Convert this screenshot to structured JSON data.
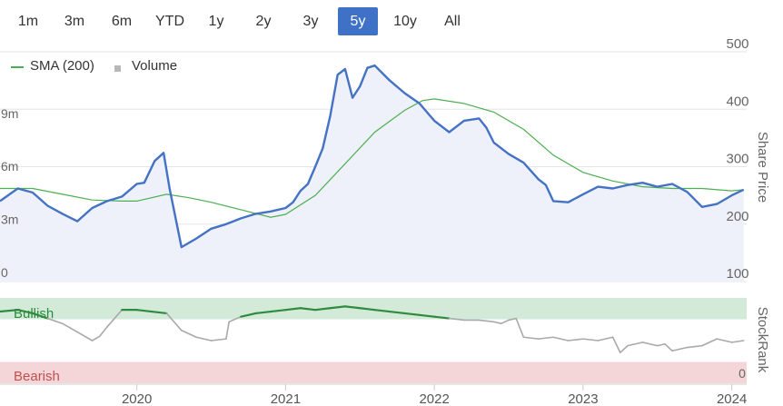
{
  "range_buttons": [
    {
      "label": "1m"
    },
    {
      "label": "3m"
    },
    {
      "label": "6m"
    },
    {
      "label": "YTD"
    },
    {
      "label": "1y"
    },
    {
      "label": "2y"
    },
    {
      "label": "3y"
    },
    {
      "label": "5y",
      "active": true
    },
    {
      "label": "10y"
    },
    {
      "label": "All"
    }
  ],
  "legend": {
    "sma_label": "SMA (200)",
    "volume_label": "Volume"
  },
  "colors": {
    "price": "#4472c4",
    "price_fill": "#eef1f9",
    "sma": "#4caf50",
    "volume": "#cfcfcf",
    "stockrank_bull": "#2e8b3e",
    "stockrank_other": "#a9a9a9",
    "bull_band": "#d3ead8",
    "bear_band": "#f4d6d8",
    "bear_text": "#c0504d",
    "bull_text": "#2e8b3e",
    "active_btn": "#3f72c6"
  },
  "chart_data": [
    {
      "type": "line",
      "title": "",
      "ylabel": "Share Price",
      "y_ticks": [
        "500",
        "400",
        "300",
        "200",
        "100"
      ],
      "ylim": [
        100,
        500
      ],
      "x_ticks": [
        "2020",
        "2021",
        "2022",
        "2023",
        "2024"
      ],
      "xlim": [
        2019.08,
        2024.1
      ],
      "volume_ticks": [
        "9m",
        "6m",
        "3m",
        "0"
      ],
      "volume_lim": [
        0,
        13
      ],
      "series": [
        {
          "name": "Share Price",
          "x": [
            2019.08,
            2019.2,
            2019.3,
            2019.4,
            2019.5,
            2019.6,
            2019.7,
            2019.8,
            2019.9,
            2020.0,
            2020.05,
            2020.12,
            2020.18,
            2020.22,
            2020.3,
            2020.4,
            2020.5,
            2020.6,
            2020.7,
            2020.8,
            2020.9,
            2021.0,
            2021.05,
            2021.1,
            2021.15,
            2021.2,
            2021.25,
            2021.3,
            2021.35,
            2021.4,
            2021.45,
            2021.5,
            2021.55,
            2021.6,
            2021.7,
            2021.8,
            2021.9,
            2022.0,
            2022.1,
            2022.2,
            2022.3,
            2022.35,
            2022.4,
            2022.5,
            2022.6,
            2022.7,
            2022.75,
            2022.8,
            2022.9,
            2023.0,
            2023.1,
            2023.2,
            2023.3,
            2023.4,
            2023.5,
            2023.6,
            2023.7,
            2023.8,
            2023.9,
            2024.0,
            2024.08
          ],
          "y": [
            240,
            262,
            255,
            232,
            218,
            205,
            228,
            240,
            248,
            270,
            272,
            310,
            324,
            262,
            160,
            175,
            192,
            200,
            210,
            218,
            222,
            228,
            238,
            258,
            270,
            300,
            332,
            388,
            460,
            470,
            420,
            440,
            472,
            476,
            450,
            428,
            410,
            380,
            360,
            380,
            384,
            368,
            342,
            322,
            307,
            278,
            268,
            240,
            238,
            252,
            265,
            262,
            268,
            272,
            265,
            270,
            256,
            230,
            235,
            250,
            260
          ]
        },
        {
          "name": "SMA (200)",
          "x": [
            2019.08,
            2019.3,
            2019.5,
            2019.7,
            2019.9,
            2020.0,
            2020.2,
            2020.35,
            2020.5,
            2020.7,
            2020.9,
            2021.0,
            2021.2,
            2021.4,
            2021.6,
            2021.8,
            2021.92,
            2022.0,
            2022.2,
            2022.4,
            2022.6,
            2022.8,
            2023.0,
            2023.2,
            2023.4,
            2023.6,
            2023.8,
            2024.0,
            2024.08
          ],
          "y": [
            262,
            262,
            252,
            242,
            240,
            240,
            252,
            246,
            238,
            225,
            212,
            217,
            250,
            305,
            360,
            398,
            415,
            418,
            410,
            395,
            365,
            320,
            290,
            275,
            265,
            262,
            262,
            258,
            260
          ]
        },
        {
          "name": "Volume",
          "x": [
            2019.4,
            2019.6,
            2020.15,
            2020.2,
            2020.3,
            2020.6,
            2020.82,
            2020.88,
            2021.1,
            2021.2,
            2021.35,
            2021.45,
            2021.55,
            2021.65,
            2021.78,
            2021.83,
            2021.87,
            2021.95,
            2022.05,
            2022.15,
            2022.22,
            2022.3,
            2022.45,
            2022.6,
            2022.75,
            2022.9,
            2023.1,
            2023.3,
            2023.5,
            2023.7,
            2023.9,
            2024.05
          ],
          "y": [
            0.9,
            1.0,
            1.8,
            1.5,
            1.1,
            0.8,
            3.0,
            1.2,
            1.5,
            1.3,
            1.8,
            2.8,
            5.9,
            4.0,
            6.7,
            2.0,
            2.6,
            1.5,
            0.9,
            4.5,
            1.0,
            0.6,
            1.0,
            0.9,
            0.7,
            1.3,
            0.7,
            0.9,
            0.9,
            0.9,
            0.5,
            0.6
          ]
        }
      ]
    },
    {
      "type": "line",
      "title": "",
      "ylabel": "StockRank",
      "ylim": [
        0,
        100
      ],
      "band_labels": {
        "bullish": "Bullish",
        "bearish": "Bearish"
      },
      "y_ticks": [
        "0"
      ],
      "series": [
        {
          "name": "StockRank",
          "x": [
            2019.08,
            2019.2,
            2019.3,
            2019.4,
            2019.5,
            2019.6,
            2019.7,
            2019.75,
            2019.8,
            2019.9,
            2020.0,
            2020.1,
            2020.2,
            2020.3,
            2020.4,
            2020.5,
            2020.6,
            2020.62,
            2020.7,
            2020.8,
            2020.9,
            2021.0,
            2021.1,
            2021.2,
            2021.3,
            2021.4,
            2021.5,
            2021.6,
            2021.7,
            2021.8,
            2021.9,
            2022.0,
            2022.1,
            2022.2,
            2022.3,
            2022.4,
            2022.45,
            2022.5,
            2022.55,
            2022.6,
            2022.7,
            2022.8,
            2022.9,
            2023.0,
            2023.1,
            2023.2,
            2023.25,
            2023.3,
            2023.4,
            2023.5,
            2023.55,
            2023.6,
            2023.7,
            2023.8,
            2023.9,
            2024.0,
            2024.08
          ],
          "y": [
            84,
            86,
            82,
            76,
            70,
            60,
            50,
            55,
            66,
            86,
            86,
            84,
            82,
            62,
            54,
            50,
            52,
            72,
            78,
            82,
            84,
            86,
            88,
            86,
            88,
            90,
            88,
            86,
            84,
            82,
            80,
            78,
            76,
            74,
            74,
            72,
            70,
            74,
            76,
            54,
            52,
            54,
            50,
            52,
            50,
            54,
            36,
            44,
            48,
            44,
            46,
            38,
            42,
            44,
            52,
            48,
            50
          ]
        }
      ]
    }
  ]
}
